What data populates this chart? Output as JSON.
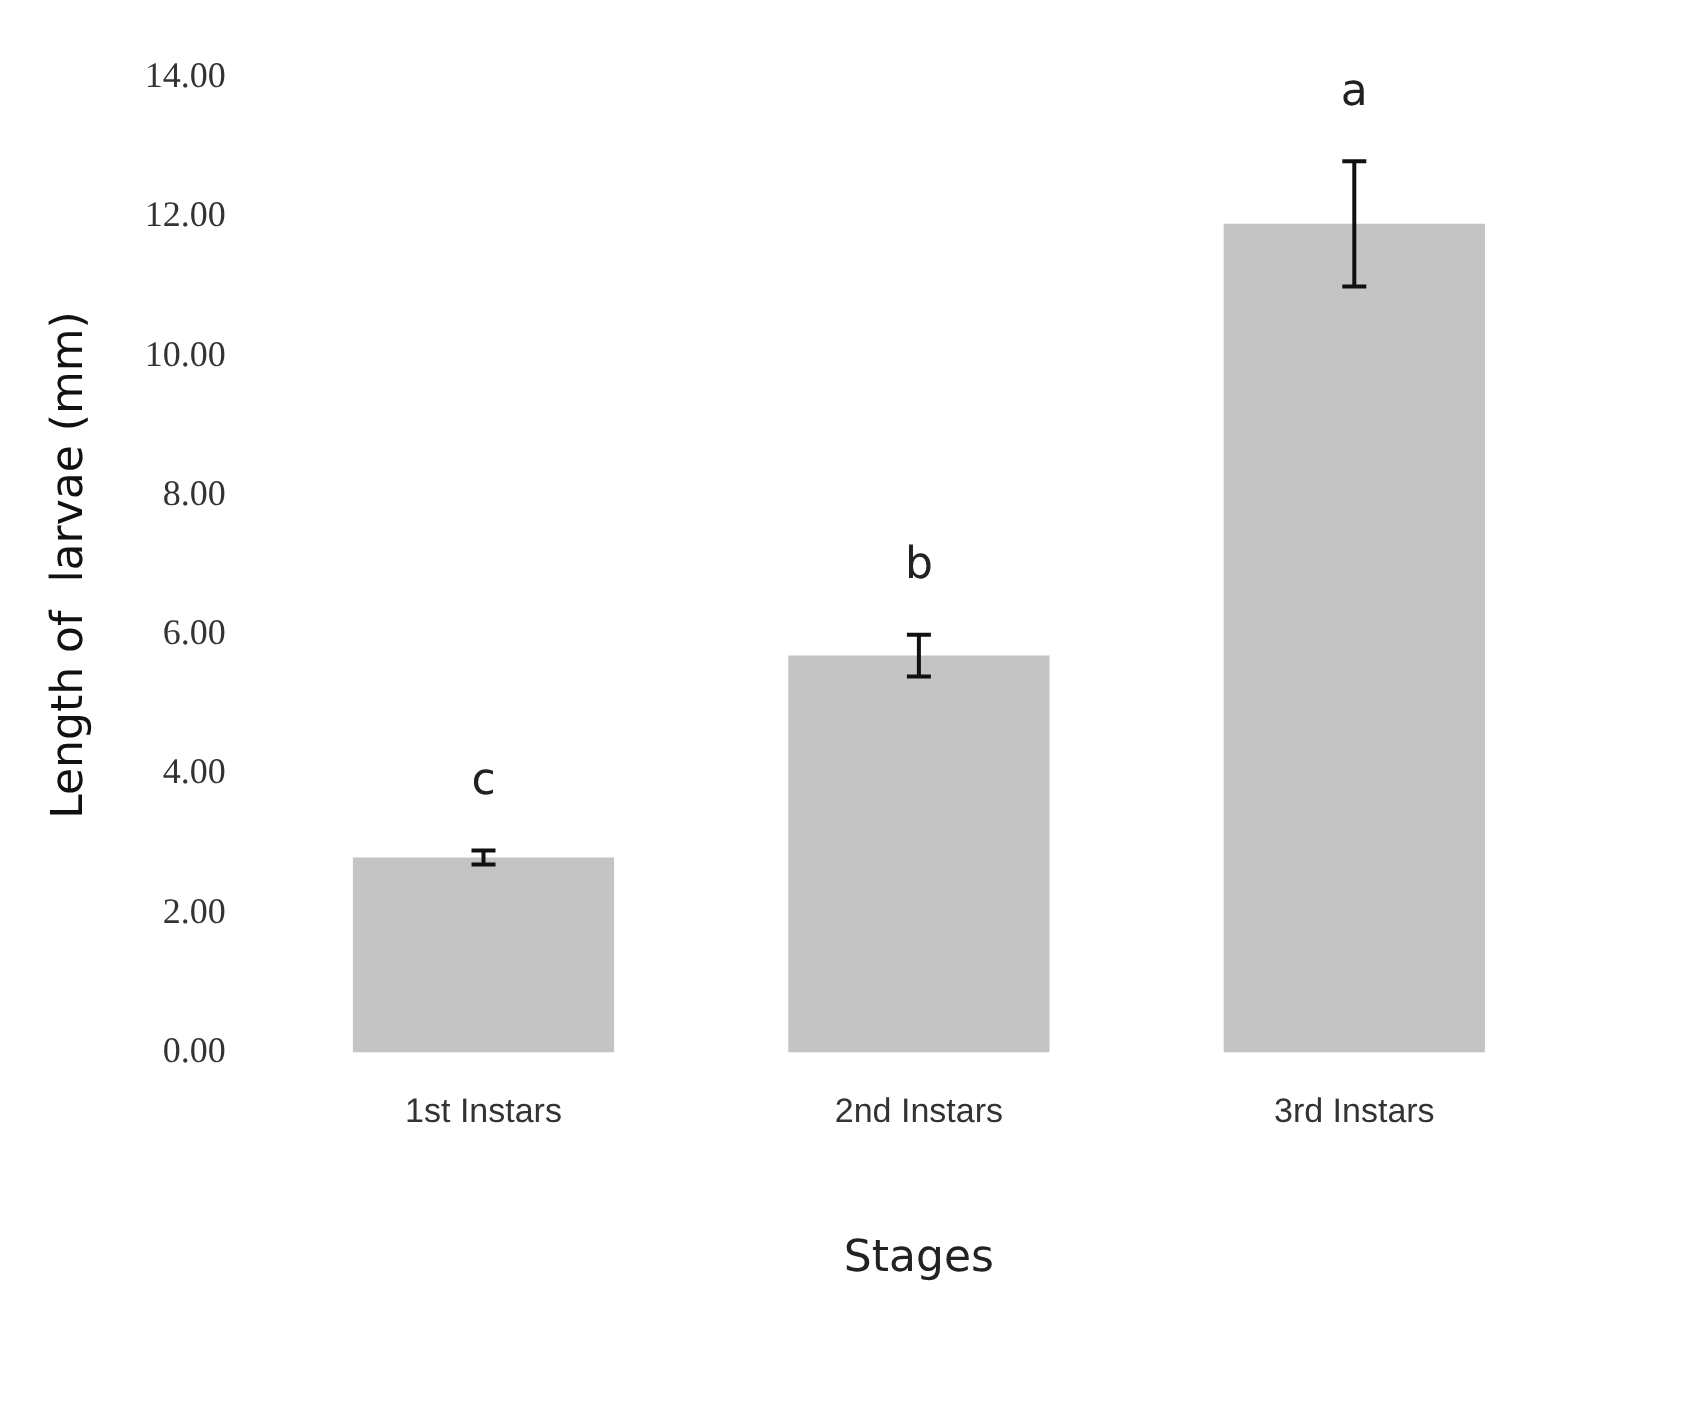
{
  "chart_data": {
    "type": "bar",
    "xlabel": "Stages",
    "ylabel": "Length of  larvae (mm)",
    "categories": [
      "1st Instars",
      "2nd Instars",
      "3rd Instars"
    ],
    "values": [
      2.8,
      5.7,
      11.9
    ],
    "errors": [
      0.1,
      0.3,
      0.9
    ],
    "color": "#c4c4c4",
    "ylim": [
      0,
      14
    ],
    "yticks": [
      {
        "value": 0,
        "label": "0.00"
      },
      {
        "value": 2,
        "label": "2.00"
      },
      {
        "value": 4,
        "label": "4.00"
      },
      {
        "value": 6,
        "label": "6.00"
      },
      {
        "value": 8,
        "label": "8.00"
      },
      {
        "value": 10,
        "label": "10.00"
      },
      {
        "value": 12,
        "label": "12.00"
      },
      {
        "value": 14,
        "label": "14.00"
      }
    ],
    "annotations": [
      "c",
      "b",
      "a"
    ],
    "grid": false,
    "legend": false
  }
}
